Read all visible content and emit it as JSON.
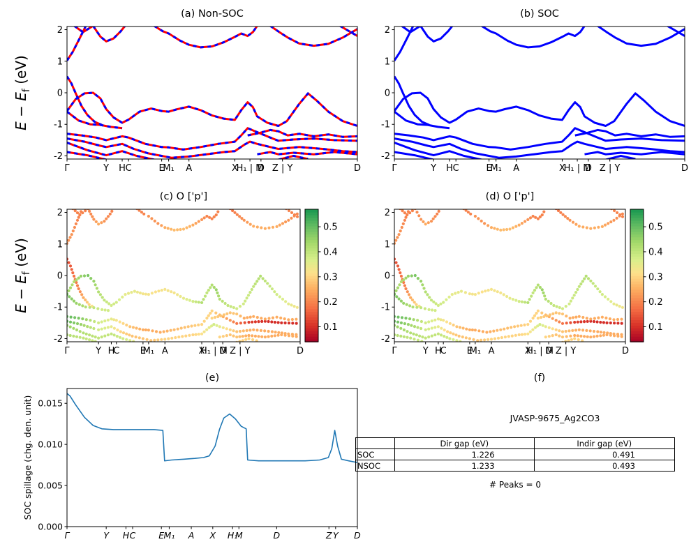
{
  "colormap": {
    "name": "RdYlGn",
    "stops": [
      [
        0,
        "#a50026"
      ],
      [
        0.12,
        "#d73027"
      ],
      [
        0.25,
        "#f46d43"
      ],
      [
        0.4,
        "#fdae61"
      ],
      [
        0.52,
        "#fee08b"
      ],
      [
        0.62,
        "#d9ef8b"
      ],
      [
        0.75,
        "#a6d96a"
      ],
      [
        0.87,
        "#66bd63"
      ],
      [
        1,
        "#1a9850"
      ]
    ]
  },
  "band_xticks": [
    {
      "l": "Γ",
      "p": 0.0
    },
    {
      "l": "Y",
      "p": 0.135
    },
    {
      "l": "H",
      "p": 0.19
    },
    {
      "l": "C",
      "p": 0.212
    },
    {
      "l": "E",
      "p": 0.326
    },
    {
      "l": "M₁",
      "p": 0.35
    },
    {
      "l": "A",
      "p": 0.42
    },
    {
      "l": "X",
      "p": 0.578
    },
    {
      "l": "H₁ | M",
      "p": 0.63
    },
    {
      "l": "D",
      "p": 0.668
    },
    {
      "l": "Z | Y",
      "p": 0.742
    },
    {
      "l": "D",
      "p": 1.0
    }
  ],
  "bands": [
    [
      [
        0.025,
        2.12,
        0.2
      ],
      [
        0.055,
        1.92,
        0.2
      ],
      [
        0.09,
        2.12,
        0.2
      ]
    ],
    [
      [
        0,
        1.02,
        0.22
      ],
      [
        0.02,
        1.3,
        0.22
      ],
      [
        0.045,
        1.75,
        0.2
      ],
      [
        0.065,
        2.12,
        0.2
      ]
    ],
    [
      [
        0.09,
        2.12,
        0.2
      ],
      [
        0.115,
        1.78,
        0.22
      ],
      [
        0.135,
        1.63,
        0.25
      ],
      [
        0.16,
        1.72,
        0.22
      ],
      [
        0.185,
        1.95,
        0.2
      ],
      [
        0.2,
        2.12,
        0.2
      ]
    ],
    [
      [
        0.3,
        2.12,
        0.2
      ],
      [
        0.33,
        1.95,
        0.2
      ],
      [
        0.35,
        1.88,
        0.22
      ],
      [
        0.39,
        1.65,
        0.22
      ],
      [
        0.42,
        1.52,
        0.25
      ],
      [
        0.46,
        1.44,
        0.27
      ],
      [
        0.5,
        1.47,
        0.27
      ],
      [
        0.54,
        1.6,
        0.25
      ],
      [
        0.578,
        1.77,
        0.22
      ],
      [
        0.6,
        1.88,
        0.2
      ],
      [
        0.622,
        1.8,
        0.2
      ],
      [
        0.64,
        1.92,
        0.2
      ],
      [
        0.655,
        2.12,
        0.2
      ]
    ],
    [
      [
        0.7,
        2.12,
        0.18
      ],
      [
        0.73,
        1.93,
        0.2
      ],
      [
        0.76,
        1.75,
        0.22
      ],
      [
        0.8,
        1.56,
        0.25
      ],
      [
        0.85,
        1.49,
        0.25
      ],
      [
        0.9,
        1.55,
        0.25
      ],
      [
        0.95,
        1.75,
        0.22
      ],
      [
        1.0,
        2.02,
        0.2
      ]
    ],
    [
      [
        0.94,
        2.12,
        0.2
      ],
      [
        1.0,
        1.8,
        0.2
      ]
    ],
    [
      [
        0,
        0.52,
        0.13
      ],
      [
        0.015,
        0.3,
        0.15
      ],
      [
        0.03,
        -0.02,
        0.18
      ],
      [
        0.05,
        -0.42,
        0.2
      ],
      [
        0.07,
        -0.7,
        0.25
      ],
      [
        0.095,
        -0.92,
        0.3
      ],
      [
        0.12,
        -1.02,
        0.35
      ]
    ],
    [
      [
        0,
        -0.58,
        0.45
      ],
      [
        0.03,
        -0.2,
        0.42
      ],
      [
        0.06,
        -0.02,
        0.45
      ],
      [
        0.09,
        0.0,
        0.48
      ],
      [
        0.115,
        -0.18,
        0.45
      ],
      [
        0.135,
        -0.52,
        0.42
      ],
      [
        0.16,
        -0.78,
        0.4
      ],
      [
        0.19,
        -0.95,
        0.38
      ],
      [
        0.212,
        -0.85,
        0.38
      ],
      [
        0.25,
        -0.6,
        0.35
      ],
      [
        0.29,
        -0.5,
        0.35
      ],
      [
        0.326,
        -0.58,
        0.33
      ],
      [
        0.35,
        -0.6,
        0.33
      ],
      [
        0.38,
        -0.52,
        0.32
      ],
      [
        0.42,
        -0.44,
        0.33
      ],
      [
        0.46,
        -0.55,
        0.33
      ],
      [
        0.5,
        -0.72,
        0.35
      ],
      [
        0.54,
        -0.82,
        0.38
      ],
      [
        0.578,
        -0.86,
        0.42
      ],
      [
        0.6,
        -0.55,
        0.4
      ],
      [
        0.622,
        -0.3,
        0.42
      ],
      [
        0.64,
        -0.45,
        0.45
      ],
      [
        0.655,
        -0.75,
        0.42
      ],
      [
        0.69,
        -0.95,
        0.4
      ],
      [
        0.728,
        -1.05,
        0.38
      ],
      [
        0.757,
        -0.9,
        0.38
      ],
      [
        0.8,
        -0.35,
        0.4
      ],
      [
        0.83,
        -0.02,
        0.42
      ],
      [
        0.86,
        -0.25,
        0.4
      ],
      [
        0.9,
        -0.6,
        0.38
      ],
      [
        0.95,
        -0.9,
        0.35
      ],
      [
        1.0,
        -1.05,
        0.33
      ]
    ],
    [
      [
        0,
        -0.6,
        0.48
      ],
      [
        0.04,
        -0.88,
        0.45
      ],
      [
        0.08,
        -1.0,
        0.42
      ],
      [
        0.115,
        -1.02,
        0.4
      ],
      [
        0.15,
        -1.08,
        0.38
      ],
      [
        0.19,
        -1.12,
        0.38
      ]
    ],
    [
      [
        0,
        -1.3,
        0.5
      ],
      [
        0.05,
        -1.35,
        0.48
      ],
      [
        0.1,
        -1.42,
        0.42
      ],
      [
        0.135,
        -1.5,
        0.38
      ],
      [
        0.19,
        -1.38,
        0.35
      ],
      [
        0.212,
        -1.42,
        0.33
      ],
      [
        0.27,
        -1.62,
        0.28
      ],
      [
        0.326,
        -1.72,
        0.25
      ],
      [
        0.35,
        -1.73,
        0.25
      ],
      [
        0.4,
        -1.8,
        0.25
      ],
      [
        0.46,
        -1.72,
        0.27
      ],
      [
        0.52,
        -1.62,
        0.28
      ],
      [
        0.578,
        -1.55,
        0.3
      ],
      [
        0.6,
        -1.35,
        0.3
      ],
      [
        0.622,
        -1.12,
        0.3
      ],
      [
        0.655,
        -1.25,
        0.27
      ],
      [
        0.7,
        -1.42,
        0.22
      ],
      [
        0.728,
        -1.52,
        0.18
      ],
      [
        0.78,
        -1.48,
        0.12
      ],
      [
        0.85,
        -1.45,
        0.1
      ],
      [
        0.92,
        -1.5,
        0.1
      ],
      [
        1.0,
        -1.52,
        0.1
      ]
    ],
    [
      [
        0,
        -1.45,
        0.5
      ],
      [
        0.06,
        -1.55,
        0.45
      ],
      [
        0.115,
        -1.68,
        0.4
      ],
      [
        0.135,
        -1.72,
        0.38
      ],
      [
        0.19,
        -1.62,
        0.35
      ],
      [
        0.23,
        -1.78,
        0.3
      ],
      [
        0.28,
        -1.92,
        0.28
      ],
      [
        0.326,
        -2.0,
        0.28
      ],
      [
        0.36,
        -2.06,
        0.28
      ],
      [
        0.42,
        -2.02,
        0.3
      ],
      [
        0.48,
        -1.95,
        0.3
      ],
      [
        0.54,
        -1.88,
        0.3
      ],
      [
        0.578,
        -1.85,
        0.32
      ],
      [
        0.61,
        -1.65,
        0.35
      ],
      [
        0.63,
        -1.55,
        0.38
      ],
      [
        0.655,
        -1.62,
        0.35
      ],
      [
        0.7,
        -1.72,
        0.3
      ],
      [
        0.728,
        -1.78,
        0.28
      ],
      [
        0.8,
        -1.72,
        0.25
      ],
      [
        0.88,
        -1.78,
        0.25
      ],
      [
        0.95,
        -1.85,
        0.25
      ],
      [
        1.0,
        -1.88,
        0.25
      ]
    ],
    [
      [
        0,
        -1.58,
        0.45
      ],
      [
        0.07,
        -1.82,
        0.42
      ],
      [
        0.135,
        -1.98,
        0.4
      ],
      [
        0.19,
        -1.85,
        0.4
      ],
      [
        0.24,
        -2.0,
        0.38
      ],
      [
        0.3,
        -2.12,
        0.35
      ]
    ],
    [
      [
        0,
        -1.88,
        0.42
      ],
      [
        0.07,
        -1.98,
        0.4
      ],
      [
        0.135,
        -2.12,
        0.38
      ]
    ],
    [
      [
        0.622,
        -1.35,
        0.3
      ],
      [
        0.66,
        -1.28,
        0.28
      ],
      [
        0.7,
        -1.18,
        0.28
      ],
      [
        0.728,
        -1.22,
        0.28
      ],
      [
        0.76,
        -1.35,
        0.25
      ],
      [
        0.8,
        -1.3,
        0.25
      ],
      [
        0.85,
        -1.38,
        0.25
      ],
      [
        0.9,
        -1.32,
        0.25
      ],
      [
        0.95,
        -1.4,
        0.25
      ],
      [
        1.0,
        -1.38,
        0.25
      ]
    ],
    [
      [
        0.655,
        -1.95,
        0.3
      ],
      [
        0.7,
        -1.88,
        0.28
      ],
      [
        0.728,
        -1.95,
        0.28
      ],
      [
        0.78,
        -1.9,
        0.25
      ],
      [
        0.85,
        -1.95,
        0.25
      ],
      [
        0.92,
        -1.88,
        0.25
      ],
      [
        1.0,
        -1.95,
        0.25
      ]
    ],
    [
      [
        0.728,
        -2.12,
        0.3
      ],
      [
        0.78,
        -2.0,
        0.3
      ],
      [
        0.83,
        -2.1,
        0.3
      ]
    ]
  ],
  "chart_data": [
    {
      "id": "a",
      "type": "band-lines",
      "title": "(a) Non-SOC",
      "ylabel": "E − E_f (eV)",
      "ylim": [
        -2.1,
        2.1
      ],
      "yticks": [
        -2,
        -1,
        0,
        1,
        2
      ],
      "xticks_ref": "band_xticks",
      "bands_ref": "bands",
      "styles": [
        {
          "color": "#ff0000",
          "width": 3.0
        },
        {
          "color": "#0000ff",
          "width": 3.0,
          "dash": "5 5.5"
        }
      ]
    },
    {
      "id": "b",
      "type": "band-lines",
      "title": "(b) SOC",
      "ylim": [
        -2.1,
        2.1
      ],
      "yticks": [
        -2,
        -1,
        0,
        1,
        2
      ],
      "xticks_ref": "band_xticks",
      "bands_ref": "bands",
      "styles": [
        {
          "color": "#0000ff",
          "width": 3.0
        }
      ]
    },
    {
      "id": "c",
      "type": "band-scatter",
      "title": "(c) O ['p']",
      "ylabel": "E − E_f (eV)",
      "ylim": [
        -2.1,
        2.1
      ],
      "yticks": [
        -2,
        -1,
        0,
        1,
        2
      ],
      "xticks_ref": "band_xticks",
      "bands_ref": "bands",
      "colorbar": {
        "vmin": 0.04,
        "vmax": 0.57,
        "ticks": [
          0.1,
          0.2,
          0.3,
          0.4,
          0.5
        ]
      }
    },
    {
      "id": "d",
      "type": "band-scatter",
      "title": "(d) O ['p']",
      "ylim": [
        -2.1,
        2.1
      ],
      "yticks": [
        -2,
        -1,
        0,
        1,
        2
      ],
      "xticks_ref": "band_xticks",
      "bands_ref": "bands",
      "colorbar": {
        "vmin": 0.04,
        "vmax": 0.57,
        "ticks": [
          0.1,
          0.2,
          0.3,
          0.4,
          0.5
        ]
      }
    },
    {
      "id": "e",
      "type": "xy-line",
      "title": "(e)",
      "ylabel": "SOC spillage (chg. den. unit)",
      "color": "#1f77b4",
      "ylim": [
        0,
        0.0168
      ],
      "yticks": [
        0,
        0.005,
        0.01,
        0.015
      ],
      "xticks": [
        {
          "l": "Γ",
          "p": 0.0
        },
        {
          "l": "Y",
          "p": 0.135
        },
        {
          "l": "H",
          "p": 0.203
        },
        {
          "l": "C",
          "p": 0.226
        },
        {
          "l": "E",
          "p": 0.325
        },
        {
          "l": "M₁",
          "p": 0.352
        },
        {
          "l": "A",
          "p": 0.428
        },
        {
          "l": "X",
          "p": 0.502
        },
        {
          "l": "H₁",
          "p": 0.57
        },
        {
          "l": "M",
          "p": 0.592
        },
        {
          "l": "D",
          "p": 0.722
        },
        {
          "l": "Z",
          "p": 0.902
        },
        {
          "l": "Y",
          "p": 0.925
        },
        {
          "l": "D",
          "p": 1.0
        }
      ],
      "x": [
        0.0,
        0.01,
        0.03,
        0.06,
        0.09,
        0.12,
        0.16,
        0.2,
        0.25,
        0.3,
        0.33,
        0.336,
        0.36,
        0.4,
        0.44,
        0.47,
        0.49,
        0.51,
        0.525,
        0.54,
        0.56,
        0.58,
        0.6,
        0.617,
        0.622,
        0.66,
        0.7,
        0.76,
        0.82,
        0.87,
        0.9,
        0.912,
        0.922,
        0.932,
        0.945,
        0.97,
        1.0
      ],
      "y": [
        0.0162,
        0.0159,
        0.0148,
        0.0133,
        0.0123,
        0.0119,
        0.0118,
        0.0118,
        0.0118,
        0.0118,
        0.0117,
        0.008,
        0.0081,
        0.0082,
        0.0083,
        0.0084,
        0.0086,
        0.0098,
        0.0118,
        0.0132,
        0.0137,
        0.0131,
        0.0122,
        0.0119,
        0.0081,
        0.008,
        0.008,
        0.008,
        0.008,
        0.0081,
        0.0084,
        0.0095,
        0.0117,
        0.0098,
        0.0082,
        0.008,
        0.0078
      ]
    }
  ],
  "panel_f": {
    "title": "(f)",
    "heading": "JVASP-9675_Ag2CO3",
    "table": {
      "headers": [
        "",
        "Dir gap (eV)",
        "Indir gap (eV)"
      ],
      "rows": [
        [
          "SOC",
          "1.226",
          "0.491"
        ],
        [
          "NSOC",
          "1.233",
          "0.493"
        ]
      ]
    },
    "peaks": "# Peaks = 0"
  }
}
